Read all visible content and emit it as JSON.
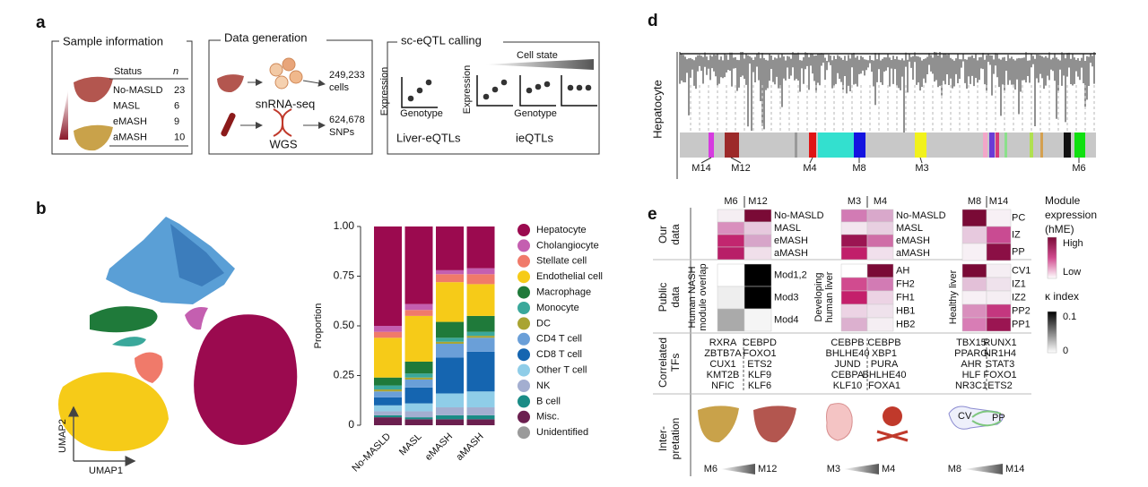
{
  "panel_a": {
    "label": "a",
    "sample_information": {
      "title": "Sample information",
      "status_header": "Status",
      "n_header": "n",
      "statuses": [
        "No-MASLD",
        "MASL",
        "eMASH",
        "aMASH"
      ],
      "n": [
        23,
        6,
        9,
        10
      ]
    },
    "data_generation": {
      "title": "Data generation",
      "assay_1": "snRNA-seq",
      "count_1": "249,233",
      "unit_1": "cells",
      "assay_2": "WGS",
      "count_2": "624,678",
      "unit_2": "SNPs"
    },
    "sc_eqtl_calling": {
      "title": "sc-eQTL calling",
      "cell_state": "Cell state",
      "y_label": "Expression",
      "x_label": "Genotype",
      "result_1": "Liver-eQTLs",
      "result_2": "ieQTLs"
    }
  },
  "panel_b": {
    "label": "b",
    "umap_x": "UMAP1",
    "umap_y": "UMAP2"
  },
  "chart_data": {
    "type": "bar",
    "stacked": true,
    "y_label": "Proportion",
    "categories": [
      "No-MASLD",
      "MASL",
      "eMASH",
      "aMASH"
    ],
    "ylim": [
      0,
      1
    ],
    "yticks": [
      0,
      0.25,
      {
        "value": 0.5,
        "label": "0.50"
      },
      0.75,
      {
        "value": 1,
        "label": "1.00"
      }
    ],
    "series": [
      {
        "name": "Hepatocyte",
        "color": "#9b0a4f",
        "values": [
          0.5,
          0.39,
          0.22,
          0.21
        ]
      },
      {
        "name": "Cholangiocyte",
        "color": "#c45fb0",
        "values": [
          0.03,
          0.03,
          0.02,
          0.03
        ]
      },
      {
        "name": "Stellate cell",
        "color": "#f07a6a",
        "values": [
          0.03,
          0.03,
          0.04,
          0.05
        ]
      },
      {
        "name": "Endothelial cell",
        "color": "#f6cb18",
        "values": [
          0.2,
          0.23,
          0.2,
          0.16
        ]
      },
      {
        "name": "Macrophage",
        "color": "#1f7a3a",
        "values": [
          0.04,
          0.06,
          0.08,
          0.08
        ]
      },
      {
        "name": "Monocyte",
        "color": "#3aa89b",
        "values": [
          0.02,
          0.02,
          0.02,
          0.02
        ]
      },
      {
        "name": "DC",
        "color": "#a9a432",
        "values": [
          0.01,
          0.01,
          0.01,
          0.01
        ]
      },
      {
        "name": "CD4 T cell",
        "color": "#6a9fd8",
        "values": [
          0.03,
          0.04,
          0.07,
          0.07
        ]
      },
      {
        "name": "CD8 T cell",
        "color": "#1565b0",
        "values": [
          0.04,
          0.08,
          0.18,
          0.2
        ]
      },
      {
        "name": "Other T cell",
        "color": "#8fcde8",
        "values": [
          0.03,
          0.04,
          0.07,
          0.08
        ]
      },
      {
        "name": "NK",
        "color": "#a3aed0",
        "values": [
          0.02,
          0.03,
          0.04,
          0.04
        ]
      },
      {
        "name": "B cell",
        "color": "#1a8c86",
        "values": [
          0.01,
          0.01,
          0.02,
          0.02
        ]
      },
      {
        "name": "Misc.",
        "color": "#6b1f4f",
        "values": [
          0.04,
          0.03,
          0.03,
          0.03
        ]
      },
      {
        "name": "Unidentified",
        "color": "#9a9a9a",
        "values": [
          0,
          0,
          0,
          0
        ]
      }
    ]
  },
  "panel_d": {
    "label": "d",
    "cell_type": "Hepatocyte",
    "modules": [
      "M14",
      "M12",
      "M4",
      "M8",
      "M3",
      "M6"
    ]
  },
  "panel_e": {
    "label": "e",
    "row_groups": {
      "our_data": [
        "Our",
        "data"
      ],
      "public_data": [
        "Public",
        "data"
      ],
      "correlated_tfs": [
        "Correlated",
        "TFs"
      ],
      "interpretation": [
        "Inter-",
        "pretation"
      ]
    },
    "groups": [
      {
        "modules": [
          "M6",
          "M12"
        ],
        "our_rows": [
          "No-MASLD",
          "MASL",
          "eMASH",
          "aMASH"
        ],
        "public_source": [
          "Human NASH",
          "module overlap"
        ],
        "public_rows": [
          "Mod1,2",
          "Mod3",
          "Mod4"
        ],
        "tfs": [
          [
            "RXRA",
            "ZBTB7A",
            "CUX1",
            "KMT2B",
            "NFIC"
          ],
          [
            "CEBPD",
            "FOXO1",
            "ETS2",
            "KLF9",
            "KLF6"
          ]
        ]
      },
      {
        "modules": [
          "M3",
          "M4"
        ],
        "our_rows": [
          "No-MASLD",
          "MASL",
          "eMASH",
          "aMASH"
        ],
        "public_source": [
          "Developing",
          "human liver"
        ],
        "public_rows": [
          "AH",
          "FH2",
          "FH1",
          "HB1",
          "HB2"
        ],
        "tfs": [
          [
            "CEBPB",
            "BHLHE40",
            "JUND",
            "CEBPA",
            "KLF10"
          ],
          [
            "CEBPB",
            "XBP1",
            "PURA",
            "BHLHE40",
            "FOXA1"
          ]
        ]
      },
      {
        "modules": [
          "M8",
          "M14"
        ],
        "our_rows": [
          "PC",
          "IZ",
          "PP"
        ],
        "public_source": [
          "Healthy liver"
        ],
        "public_rows": [
          "CV1",
          "IZ1",
          "IZ2",
          "PP2",
          "PP1"
        ],
        "tfs": [
          [
            "TBX15",
            "PPARG",
            "AHR",
            "HLF",
            "NR3C1"
          ],
          [
            "RUNX1",
            "NR1H4",
            "STAT3",
            "FOXO1",
            "ETS2"
          ]
        ]
      }
    ],
    "icon_labels": [
      "CV",
      "PP"
    ],
    "legend": {
      "title": [
        "Module",
        "expression",
        "(hME)"
      ],
      "high": "High",
      "low": "Low",
      "kappa_title": "κ index",
      "kappa_ticks": [
        0.1,
        0
      ]
    }
  }
}
